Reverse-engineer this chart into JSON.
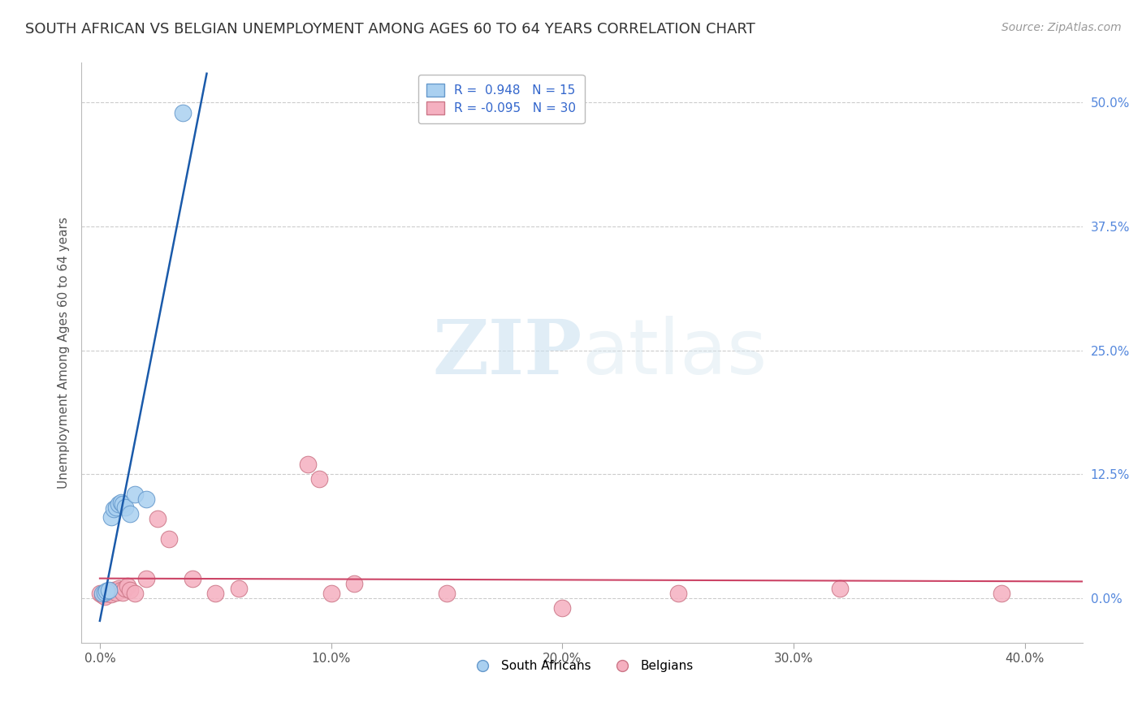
{
  "title": "SOUTH AFRICAN VS BELGIAN UNEMPLOYMENT AMONG AGES 60 TO 64 YEARS CORRELATION CHART",
  "source": "Source: ZipAtlas.com",
  "ylabel": "Unemployment Among Ages 60 to 64 years",
  "xlabel_ticks": [
    "0.0%",
    "10.0%",
    "20.0%",
    "30.0%",
    "40.0%"
  ],
  "xlabel_vals": [
    0.0,
    0.1,
    0.2,
    0.3,
    0.4
  ],
  "ylabel_ticks": [
    "0.0%",
    "12.5%",
    "25.0%",
    "37.5%",
    "50.0%"
  ],
  "ylabel_vals": [
    0.0,
    0.125,
    0.25,
    0.375,
    0.5
  ],
  "xlim": [
    -0.008,
    0.425
  ],
  "ylim": [
    -0.045,
    0.54
  ],
  "south_africans_x": [
    0.001,
    0.002,
    0.003,
    0.004,
    0.005,
    0.006,
    0.007,
    0.008,
    0.009,
    0.01,
    0.011,
    0.013,
    0.015,
    0.02,
    0.036
  ],
  "south_africans_y": [
    0.005,
    0.006,
    0.007,
    0.008,
    0.082,
    0.09,
    0.092,
    0.095,
    0.097,
    0.095,
    0.092,
    0.085,
    0.105,
    0.1,
    0.49
  ],
  "belgians_x": [
    0.0,
    0.001,
    0.002,
    0.003,
    0.004,
    0.005,
    0.006,
    0.007,
    0.008,
    0.009,
    0.01,
    0.011,
    0.012,
    0.013,
    0.015,
    0.02,
    0.025,
    0.03,
    0.04,
    0.05,
    0.06,
    0.09,
    0.095,
    0.1,
    0.11,
    0.15,
    0.2,
    0.25,
    0.32,
    0.39
  ],
  "belgians_y": [
    0.005,
    0.003,
    0.002,
    0.005,
    0.007,
    0.004,
    0.008,
    0.006,
    0.01,
    0.008,
    0.006,
    0.01,
    0.012,
    0.008,
    0.005,
    0.02,
    0.08,
    0.06,
    0.02,
    0.005,
    0.01,
    0.135,
    0.12,
    0.005,
    0.015,
    0.005,
    -0.01,
    0.005,
    0.01,
    0.005
  ],
  "sa_color": "#aad0f0",
  "sa_edge_color": "#6699cc",
  "belgian_color": "#f5b0c0",
  "belgian_edge_color": "#cc7788",
  "sa_line_color": "#1a5aaa",
  "belgian_line_color": "#cc4466",
  "sa_R": 0.948,
  "sa_N": 15,
  "belgian_R": -0.095,
  "belgian_N": 30,
  "legend_labels": [
    "South Africans",
    "Belgians"
  ],
  "watermark_zip": "ZIP",
  "watermark_atlas": "atlas",
  "background_color": "#ffffff",
  "grid_color": "#cccccc",
  "title_fontsize": 13,
  "source_fontsize": 10,
  "axis_label_fontsize": 11,
  "tick_fontsize": 11,
  "legend_fontsize": 11
}
